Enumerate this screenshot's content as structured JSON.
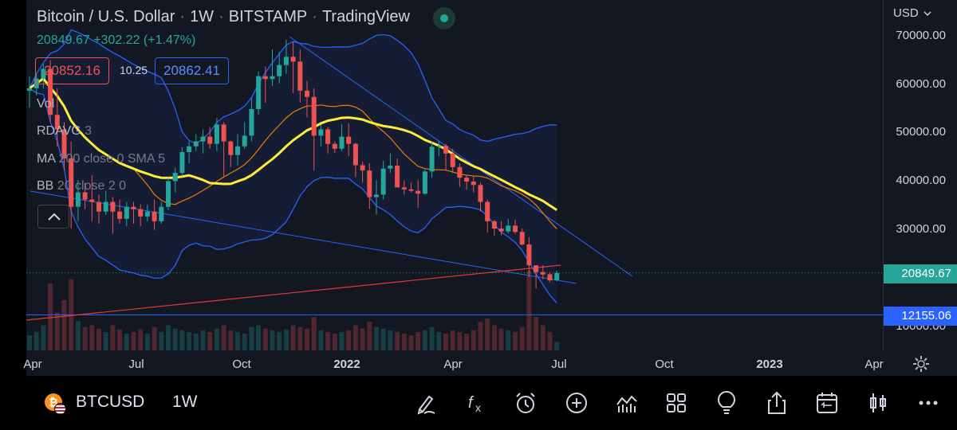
{
  "header": {
    "symbol_desc": "Bitcoin / U.S. Dollar",
    "interval": "1W",
    "exchange": "BITSTAMP",
    "platform": "TradingView",
    "dot": "·",
    "last_price": "20849.67",
    "change": "+302.22",
    "change_pct": "(+1.47%)",
    "sell_price": "20852.16",
    "spread": "10.25",
    "buy_price": "20862.41"
  },
  "indicators": [
    {
      "name": "Vol",
      "args": ""
    },
    {
      "name": "RDAVG",
      "args": "3"
    },
    {
      "name": "MA",
      "args": "200 close 0 SMA 5"
    },
    {
      "name": "BB",
      "args": "20 close 2 0"
    }
  ],
  "price_scale": {
    "currency": "USD",
    "labels": [
      "70000.00",
      "60000.00",
      "50000.00",
      "40000.00",
      "30000.00",
      "10000.00"
    ],
    "current_tag": "20849.67",
    "hline_tag": "12155.06"
  },
  "time_scale": {
    "labels": [
      "Apr",
      "Jul",
      "Oct",
      "2022",
      "Apr",
      "Jul",
      "Oct",
      "2023",
      "Apr"
    ],
    "bold": [
      false,
      false,
      false,
      true,
      false,
      false,
      false,
      true,
      false
    ]
  },
  "bottom_bar": {
    "symbol": "BTCUSD",
    "interval": "1W",
    "tools": [
      "draw-icon",
      "indicators-fx-icon",
      "alert-icon",
      "add-icon",
      "compare-icon",
      "layouts-icon",
      "ideas-icon",
      "share-icon",
      "replay-icon",
      "chart-type-icon",
      "more-icon"
    ]
  },
  "colors": {
    "up": "#26a69a",
    "down": "#ef5350",
    "bb": "#2962ff",
    "ma": "#ffeb3b",
    "rdavg": "#f57c00",
    "ma200": "#e53935",
    "trend": "#2962ff",
    "hline": "#2962ff"
  },
  "chart_data": {
    "type": "candlestick",
    "interval": "1W",
    "price_range": [
      5000,
      75000
    ],
    "current_price": 20849.67,
    "horizontal_line": 12155.06,
    "candles": [
      [
        58500,
        61500,
        55000,
        59000
      ],
      [
        59000,
        62000,
        57500,
        61000
      ],
      [
        61000,
        64000,
        59000,
        63000
      ],
      [
        63000,
        64800,
        52000,
        53500
      ],
      [
        53500,
        59000,
        47000,
        50500
      ],
      [
        50500,
        52000,
        42000,
        44500
      ],
      [
        44500,
        48000,
        30000,
        34500
      ],
      [
        34500,
        40000,
        31500,
        37500
      ],
      [
        37500,
        39500,
        34000,
        36000
      ],
      [
        36000,
        41000,
        31500,
        35500
      ],
      [
        35500,
        37000,
        31000,
        33500
      ],
      [
        33500,
        37800,
        32800,
        35500
      ],
      [
        35500,
        36500,
        28900,
        33500
      ],
      [
        33500,
        36000,
        31000,
        32000
      ],
      [
        32000,
        35500,
        30500,
        34500
      ],
      [
        34500,
        35500,
        31000,
        34000
      ],
      [
        34000,
        35000,
        30500,
        32500
      ],
      [
        32500,
        35000,
        31500,
        33500
      ],
      [
        33500,
        36000,
        29700,
        31500
      ],
      [
        31500,
        35500,
        31000,
        34500
      ],
      [
        34500,
        40500,
        33800,
        39800
      ],
      [
        39800,
        42600,
        37500,
        41500
      ],
      [
        41500,
        46800,
        40800,
        45800
      ],
      [
        45800,
        48000,
        43500,
        47000
      ],
      [
        47000,
        49500,
        46000,
        48000
      ],
      [
        48000,
        50500,
        45500,
        49000
      ],
      [
        49000,
        51000,
        46500,
        47500
      ],
      [
        47500,
        52900,
        46000,
        51500
      ],
      [
        51500,
        52000,
        40800,
        48000
      ],
      [
        48000,
        48200,
        42700,
        45200
      ],
      [
        45200,
        49500,
        43000,
        47000
      ],
      [
        47000,
        52000,
        46500,
        49200
      ],
      [
        49200,
        57000,
        48000,
        54700
      ],
      [
        54700,
        62500,
        53500,
        61500
      ],
      [
        61500,
        63500,
        56000,
        60900
      ],
      [
        60900,
        67000,
        59500,
        61500
      ],
      [
        61500,
        66500,
        60000,
        63800
      ],
      [
        63800,
        69000,
        62000,
        65500
      ],
      [
        65500,
        68500,
        58000,
        64500
      ],
      [
        64500,
        67000,
        56000,
        58500
      ],
      [
        58500,
        60500,
        53000,
        57200
      ],
      [
        57200,
        59000,
        42000,
        49200
      ],
      [
        49200,
        51500,
        47000,
        50500
      ],
      [
        50500,
        51000,
        45500,
        47500
      ],
      [
        47500,
        48000,
        45600,
        46500
      ],
      [
        46500,
        51500,
        46000,
        49000
      ],
      [
        49000,
        51800,
        45000,
        47500
      ],
      [
        47500,
        47700,
        40600,
        43100
      ],
      [
        43100,
        43800,
        39500,
        42000
      ],
      [
        42000,
        43500,
        34000,
        36500
      ],
      [
        36500,
        40000,
        32900,
        37000
      ],
      [
        37000,
        44000,
        36000,
        42400
      ],
      [
        42400,
        45500,
        41500,
        43000
      ],
      [
        43000,
        44500,
        39000,
        38500
      ],
      [
        38500,
        40000,
        37000,
        38100
      ],
      [
        38100,
        39500,
        37500,
        37800
      ],
      [
        37800,
        40000,
        34300,
        37200
      ],
      [
        37200,
        42400,
        37000,
        41800
      ],
      [
        41800,
        48000,
        40500,
        46900
      ],
      [
        46900,
        48200,
        45000,
        47100
      ],
      [
        47100,
        47500,
        42000,
        45500
      ],
      [
        45500,
        46500,
        41500,
        42700
      ],
      [
        42700,
        43500,
        38600,
        40500
      ],
      [
        40500,
        41000,
        38000,
        39700
      ],
      [
        39700,
        41000,
        37500,
        39000
      ],
      [
        39000,
        39500,
        33500,
        35500
      ],
      [
        35500,
        36000,
        29200,
        31500
      ],
      [
        31500,
        31800,
        28500,
        30000
      ],
      [
        30000,
        31500,
        28600,
        29400
      ],
      [
        29400,
        32000,
        29000,
        30600
      ],
      [
        30600,
        31800,
        28900,
        29300
      ],
      [
        29300,
        30000,
        26500,
        26700
      ],
      [
        26700,
        28200,
        20000,
        22400
      ],
      [
        22400,
        22000,
        17600,
        21000
      ],
      [
        21000,
        22400,
        19500,
        20500
      ],
      [
        20550,
        21000,
        18900,
        19300
      ],
      [
        19300,
        21300,
        19100,
        20800
      ]
    ],
    "volume_bars": [
      18,
      22,
      30,
      80,
      45,
      60,
      85,
      35,
      28,
      30,
      26,
      22,
      30,
      25,
      20,
      22,
      25,
      20,
      28,
      22,
      30,
      26,
      24,
      22,
      20,
      24,
      22,
      26,
      30,
      24,
      22,
      20,
      28,
      30,
      26,
      24,
      22,
      25,
      30,
      28,
      26,
      40,
      24,
      22,
      20,
      22,
      24,
      30,
      26,
      34,
      28,
      26,
      24,
      22,
      20,
      18,
      22,
      24,
      28,
      22,
      20,
      24,
      22,
      20,
      24,
      34,
      38,
      30,
      26,
      24,
      22,
      28,
      95,
      40,
      30,
      22,
      10
    ]
  }
}
